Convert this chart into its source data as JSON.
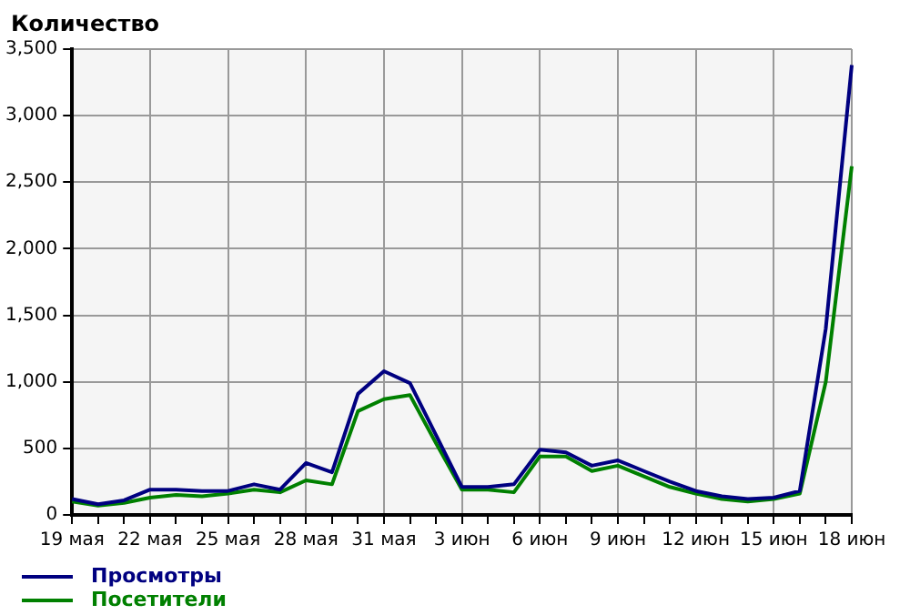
{
  "chart_data": {
    "type": "line",
    "title": "Количество",
    "categories": [
      "19 мая",
      null,
      null,
      "22 мая",
      null,
      null,
      "25 мая",
      null,
      null,
      "28 мая",
      null,
      null,
      "31 мая",
      null,
      null,
      "3 июн",
      null,
      null,
      "6 июн",
      null,
      null,
      "9 июн",
      null,
      null,
      "12 июн",
      null,
      null,
      "15 июн",
      null,
      null,
      "18 июн"
    ],
    "series": [
      {
        "name": "Просмотры",
        "color": "#000080",
        "values": [
          120,
          80,
          110,
          190,
          190,
          180,
          180,
          230,
          190,
          390,
          320,
          910,
          1080,
          990,
          600,
          210,
          210,
          230,
          490,
          470,
          370,
          410,
          330,
          250,
          180,
          140,
          120,
          130,
          180,
          1400,
          3380
        ]
      },
      {
        "name": "Посетители",
        "color": "#008000",
        "values": [
          100,
          70,
          90,
          130,
          150,
          140,
          160,
          190,
          170,
          260,
          230,
          780,
          870,
          900,
          540,
          190,
          190,
          170,
          440,
          440,
          330,
          370,
          290,
          210,
          160,
          120,
          100,
          120,
          160,
          1000,
          2620
        ]
      }
    ],
    "ylim": [
      0,
      3500
    ],
    "yticks": [
      {
        "value": 0,
        "label": "0"
      },
      {
        "value": 500,
        "label": "500"
      },
      {
        "value": 1000,
        "label": "1,000"
      },
      {
        "value": 1500,
        "label": "1,500"
      },
      {
        "value": 2000,
        "label": "2,000"
      },
      {
        "value": 2500,
        "label": "2,500"
      },
      {
        "value": 3000,
        "label": "3,000"
      },
      {
        "value": 3500,
        "label": "3,500"
      }
    ],
    "grid": true,
    "legend": "bottom left",
    "marker": "none",
    "line_style": "solid"
  }
}
